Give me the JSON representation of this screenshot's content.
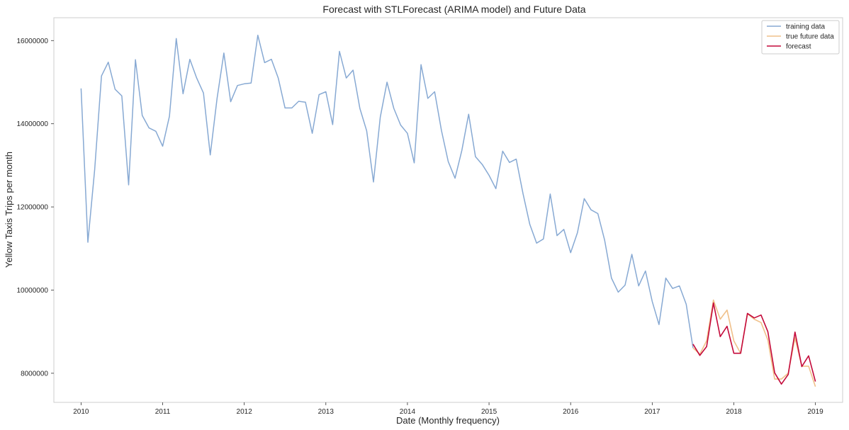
{
  "chart_data": {
    "type": "line",
    "title": "Forecast with STLForecast (ARIMA model) and Future Data",
    "xlabel": "Date (Monthly frequency)",
    "ylabel": "Yellow Taxis Trips per month",
    "xlim": [
      "2009-09",
      "2019-05"
    ],
    "ylim": [
      7300000,
      16550000
    ],
    "x_ticks": [
      "2010",
      "2011",
      "2012",
      "2013",
      "2014",
      "2015",
      "2016",
      "2017",
      "2018",
      "2019"
    ],
    "y_ticks": [
      8000000,
      10000000,
      12000000,
      14000000,
      16000000
    ],
    "grid": false,
    "legend_position": "top-right",
    "series": [
      {
        "name": "training data",
        "color": "#87a9d3",
        "x": [
          "2010-01",
          "2010-02",
          "2010-03",
          "2010-04",
          "2010-05",
          "2010-06",
          "2010-07",
          "2010-08",
          "2010-09",
          "2010-10",
          "2010-11",
          "2010-12",
          "2011-01",
          "2011-02",
          "2011-03",
          "2011-04",
          "2011-05",
          "2011-06",
          "2011-07",
          "2011-08",
          "2011-09",
          "2011-10",
          "2011-11",
          "2011-12",
          "2012-01",
          "2012-02",
          "2012-03",
          "2012-04",
          "2012-05",
          "2012-06",
          "2012-07",
          "2012-08",
          "2012-09",
          "2012-10",
          "2012-11",
          "2012-12",
          "2013-01",
          "2013-02",
          "2013-03",
          "2013-04",
          "2013-05",
          "2013-06",
          "2013-07",
          "2013-08",
          "2013-09",
          "2013-10",
          "2013-11",
          "2013-12",
          "2014-01",
          "2014-02",
          "2014-03",
          "2014-04",
          "2014-05",
          "2014-06",
          "2014-07",
          "2014-08",
          "2014-09",
          "2014-10",
          "2014-11",
          "2014-12",
          "2015-01",
          "2015-02",
          "2015-03",
          "2015-04",
          "2015-05",
          "2015-06",
          "2015-07",
          "2015-08",
          "2015-09",
          "2015-10",
          "2015-11",
          "2015-12",
          "2016-01",
          "2016-02",
          "2016-03",
          "2016-04",
          "2016-05",
          "2016-06",
          "2016-07",
          "2016-08",
          "2016-09",
          "2016-10",
          "2016-11",
          "2016-12",
          "2017-01",
          "2017-02",
          "2017-03",
          "2017-04",
          "2017-05",
          "2017-06",
          "2017-07"
        ],
        "values": [
          14850000,
          11150000,
          12900000,
          15150000,
          15480000,
          14830000,
          14670000,
          12530000,
          15540000,
          14200000,
          13900000,
          13820000,
          13460000,
          14180000,
          16050000,
          14720000,
          15550000,
          15100000,
          14740000,
          13250000,
          14610000,
          15700000,
          14530000,
          14920000,
          14960000,
          14980000,
          16130000,
          15470000,
          15550000,
          15100000,
          14380000,
          14380000,
          14540000,
          14520000,
          13770000,
          14700000,
          14770000,
          13980000,
          15740000,
          15100000,
          15290000,
          14370000,
          13830000,
          12600000,
          14160000,
          15000000,
          14370000,
          13970000,
          13770000,
          13060000,
          15420000,
          14610000,
          14770000,
          13840000,
          13090000,
          12690000,
          13360000,
          14230000,
          13210000,
          13020000,
          12760000,
          12440000,
          13340000,
          13070000,
          13150000,
          12320000,
          11580000,
          11130000,
          11230000,
          12310000,
          11310000,
          11460000,
          10900000,
          11380000,
          12200000,
          11930000,
          11840000,
          11200000,
          10290000,
          9950000,
          10120000,
          10860000,
          10100000,
          10460000,
          9730000,
          9170000,
          10290000,
          10040000,
          10100000,
          9660000,
          8610000
        ]
      },
      {
        "name": "true future data",
        "color": "#f0c08a",
        "x": [
          "2017-07",
          "2017-08",
          "2017-09",
          "2017-10",
          "2017-11",
          "2017-12",
          "2018-01",
          "2018-02",
          "2018-03",
          "2018-04",
          "2018-05",
          "2018-06",
          "2018-07",
          "2018-08",
          "2018-09",
          "2018-10",
          "2018-11",
          "2018-12",
          "2019-01"
        ],
        "values": [
          8610000,
          8460000,
          8780000,
          9760000,
          9300000,
          9520000,
          8780000,
          8480000,
          9430000,
          9300000,
          9220000,
          8800000,
          7860000,
          7860000,
          8000000,
          8850000,
          8170000,
          8170000,
          7680000
        ]
      },
      {
        "name": "forecast",
        "color": "#c4093a",
        "x": [
          "2017-07",
          "2017-08",
          "2017-09",
          "2017-10",
          "2017-11",
          "2017-12",
          "2018-01",
          "2018-02",
          "2018-03",
          "2018-04",
          "2018-05",
          "2018-06",
          "2018-07",
          "2018-08",
          "2018-09",
          "2018-10",
          "2018-11",
          "2018-12",
          "2019-01"
        ],
        "values": [
          8700000,
          8430000,
          8640000,
          9690000,
          8880000,
          9130000,
          8480000,
          8480000,
          9440000,
          9330000,
          9400000,
          9000000,
          8010000,
          7740000,
          7970000,
          8990000,
          8160000,
          8420000,
          7800000
        ]
      }
    ]
  }
}
